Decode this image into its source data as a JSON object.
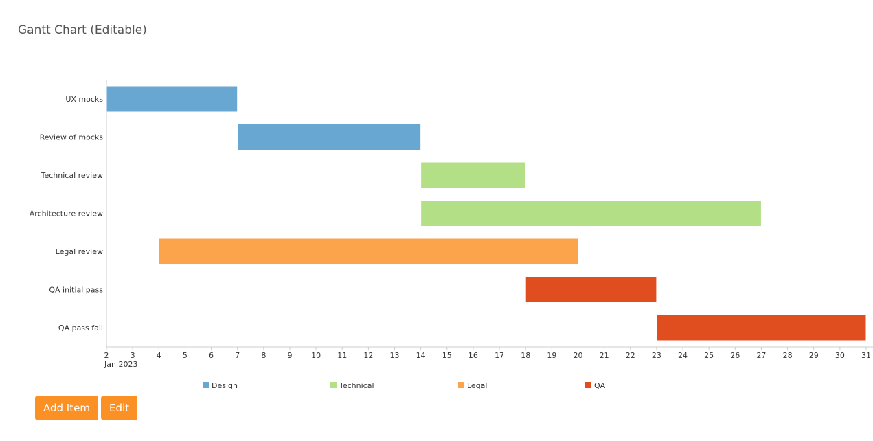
{
  "header": {
    "title": "Gantt Chart (Editable)"
  },
  "buttons": {
    "add_item": "Add Item",
    "edit": "Edit"
  },
  "chart_data": {
    "type": "gantt",
    "x_axis": {
      "unit": "day",
      "range": [
        "2023-01-02",
        "2023-01-31"
      ],
      "ticks": [
        "2",
        "3",
        "4",
        "5",
        "6",
        "7",
        "8",
        "9",
        "10",
        "11",
        "12",
        "13",
        "14",
        "15",
        "16",
        "17",
        "18",
        "19",
        "20",
        "21",
        "22",
        "23",
        "24",
        "25",
        "26",
        "27",
        "28",
        "29",
        "30",
        "31"
      ],
      "sublabel": "Jan 2023"
    },
    "grid": false,
    "legend_placement": "bottom",
    "categories": [
      {
        "name": "Design",
        "color": "#68a7d2"
      },
      {
        "name": "Technical",
        "color": "#b3e087"
      },
      {
        "name": "Legal",
        "color": "#fba44c"
      },
      {
        "name": "QA",
        "color": "#e04e20"
      }
    ],
    "tasks": [
      {
        "label": "UX mocks",
        "category": "Design",
        "start": "2023-01-02",
        "end": "2023-01-07"
      },
      {
        "label": "Review of mocks",
        "category": "Design",
        "start": "2023-01-07",
        "end": "2023-01-14"
      },
      {
        "label": "Technical review",
        "category": "Technical",
        "start": "2023-01-14",
        "end": "2023-01-18"
      },
      {
        "label": "Architecture review",
        "category": "Technical",
        "start": "2023-01-14",
        "end": "2023-01-27"
      },
      {
        "label": "Legal review",
        "category": "Legal",
        "start": "2023-01-04",
        "end": "2023-01-20"
      },
      {
        "label": "QA initial pass",
        "category": "QA",
        "start": "2023-01-18",
        "end": "2023-01-23"
      },
      {
        "label": "QA pass fail",
        "category": "QA",
        "start": "2023-01-23",
        "end": "2023-01-31"
      }
    ]
  }
}
